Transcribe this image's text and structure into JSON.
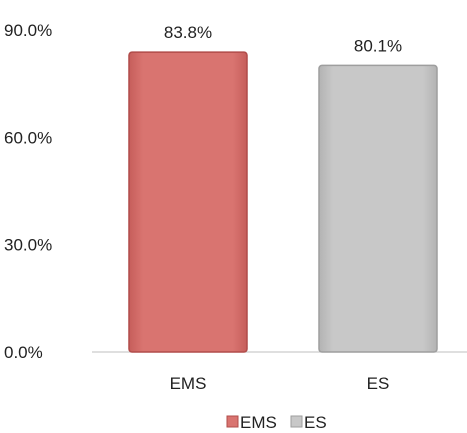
{
  "chart_data": {
    "type": "bar",
    "categories": [
      "EMS",
      "ES"
    ],
    "values": [
      83.8,
      80.1
    ],
    "value_labels": [
      "83.8%",
      "80.1%"
    ],
    "ylim": [
      0,
      90
    ],
    "yticks": [
      0,
      30,
      60,
      90
    ],
    "ytick_labels": [
      "0.0%",
      "30.0%",
      "60.0%",
      "90.0%"
    ],
    "grid": false,
    "legend": {
      "position": "bottom",
      "entries": [
        "EMS",
        "ES"
      ]
    },
    "colors": {
      "EMS": "#d97470",
      "EMS_edge": "#b14c4a",
      "ES": "#c8c8c8",
      "ES_edge": "#9e9e9e"
    }
  }
}
